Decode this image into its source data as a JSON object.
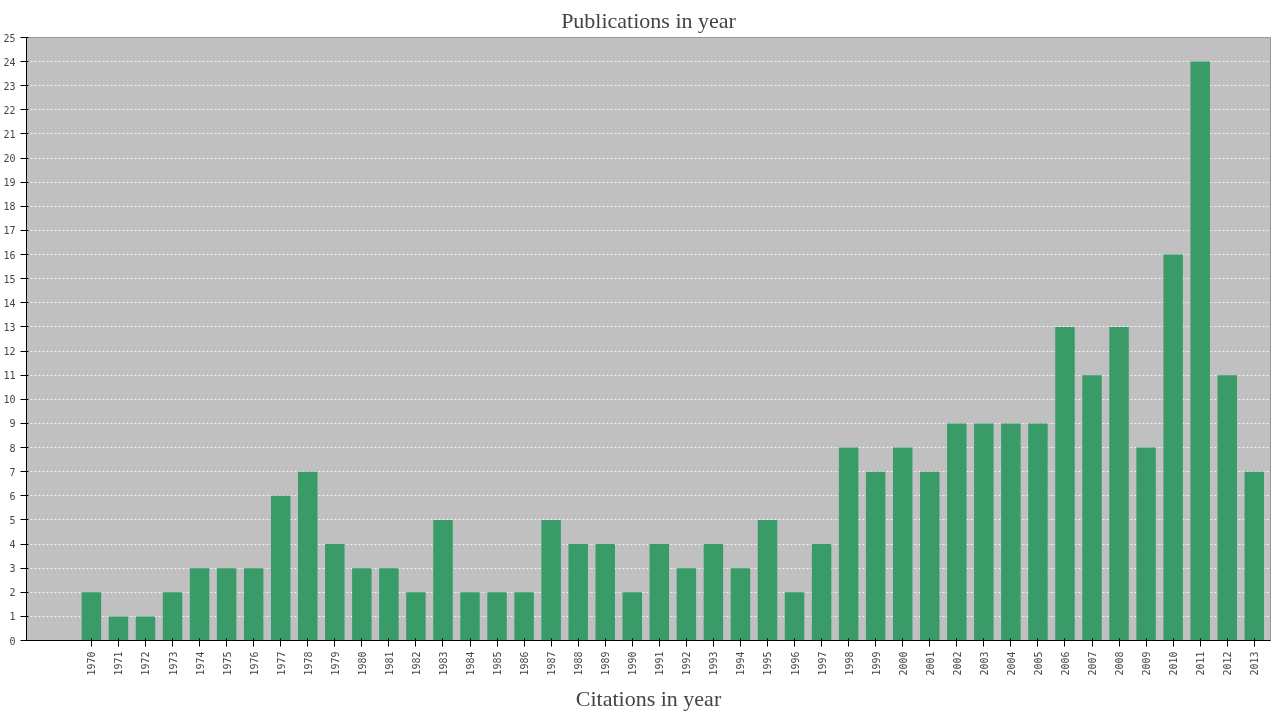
{
  "chart_data": {
    "type": "bar",
    "title": "Publications in year",
    "xlabel": "Citations in year",
    "categories": [
      "1970",
      "1971",
      "1972",
      "1973",
      "1974",
      "1975",
      "1976",
      "1977",
      "1978",
      "1979",
      "1980",
      "1981",
      "1982",
      "1983",
      "1984",
      "1985",
      "1986",
      "1987",
      "1988",
      "1989",
      "1990",
      "1991",
      "1992",
      "1993",
      "1994",
      "1995",
      "1996",
      "1997",
      "1998",
      "1999",
      "2000",
      "2001",
      "2002",
      "2003",
      "2004",
      "2005",
      "2006",
      "2007",
      "2008",
      "2009",
      "2010",
      "2011",
      "2012",
      "2013"
    ],
    "values": [
      2,
      1,
      1,
      2,
      3,
      3,
      3,
      6,
      7,
      4,
      3,
      3,
      2,
      5,
      2,
      2,
      2,
      5,
      4,
      4,
      2,
      4,
      3,
      4,
      3,
      5,
      2,
      4,
      8,
      7,
      8,
      7,
      9,
      9,
      9,
      9,
      13,
      11,
      13,
      8,
      16,
      24,
      11,
      7
    ],
    "color": "#389b68",
    "ylim": [
      0,
      25
    ],
    "yticks": [
      0,
      1,
      2,
      3,
      4,
      5,
      6,
      7,
      8,
      9,
      10,
      11,
      12,
      13,
      14,
      15,
      16,
      17,
      18,
      19,
      20,
      21,
      22,
      23,
      24,
      25
    ],
    "grid": "y"
  }
}
